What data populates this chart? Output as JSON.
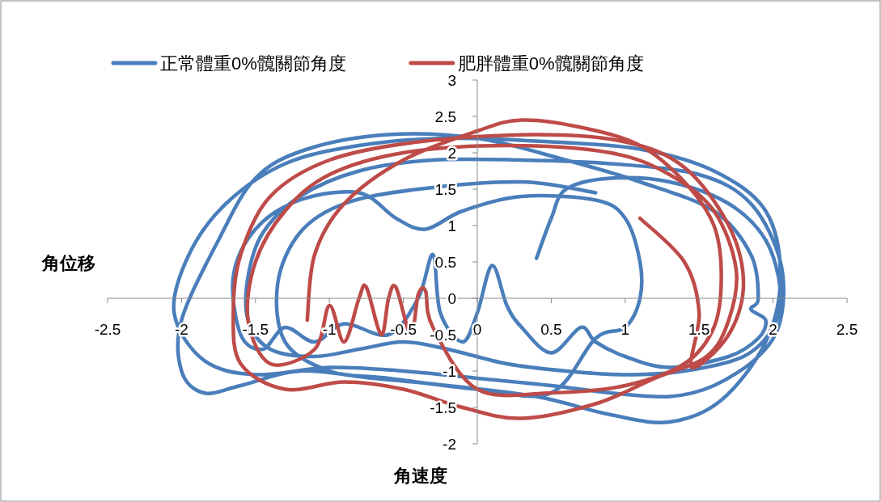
{
  "chart_data": {
    "type": "line",
    "xlabel": "角速度",
    "ylabel": "角位移",
    "xlim": [
      -2.5,
      2.5
    ],
    "ylim": [
      -2,
      3
    ],
    "xticks": [
      -2.5,
      -2,
      -1.5,
      -1,
      -0.5,
      0,
      0.5,
      1,
      1.5,
      2,
      2.5
    ],
    "yticks": [
      -2,
      -1.5,
      -1,
      -0.5,
      0,
      0.5,
      1,
      1.5,
      2,
      2.5,
      3
    ],
    "grid": false,
    "legend": "top",
    "marker": "none",
    "series": [
      {
        "name": "正常體重0%髖關節角度",
        "color": "#4a7ebb",
        "x": [
          0.4,
          0.5,
          0.6,
          0.9,
          1.3,
          1.7,
          1.95,
          2.05,
          2.0,
          1.8,
          1.4,
          1.0,
          0.6,
          0.2,
          -0.2,
          -0.5,
          -0.8,
          -1.1,
          -1.4,
          -1.55,
          -1.55,
          -1.45,
          -1.2,
          -0.8,
          -0.3,
          0.3,
          0.9,
          1.5,
          1.85,
          2.05,
          2.05,
          1.9,
          1.6,
          1.3,
          0.9,
          0.5,
          0.0,
          -0.5,
          -1.0,
          -1.5,
          -1.85,
          -2.05,
          -1.95,
          -1.7,
          -1.3,
          -0.8,
          -0.2,
          0.5,
          1.1,
          1.6,
          1.95,
          2.05,
          1.95,
          1.65,
          1.3,
          0.9,
          0.4,
          -0.2,
          -0.7,
          -1.2,
          -1.6,
          -1.85,
          -2.0,
          -2.0,
          -1.75,
          -1.5,
          -1.15,
          -0.6,
          0.0,
          0.6,
          1.1,
          1.6,
          1.85,
          1.9,
          1.85,
          1.95,
          1.9,
          1.7,
          1.3,
          1.0,
          0.8,
          0.7,
          0.5,
          0.3,
          0.2,
          0.1,
          0.0,
          -0.1,
          -0.25,
          -0.3,
          -0.4,
          -0.6,
          -0.9,
          -1.1,
          -1.3,
          -1.45,
          -1.6,
          -1.65,
          -1.5,
          -1.2,
          -0.8,
          -0.55,
          -0.35,
          -0.1,
          0.3,
          0.8,
          1.0,
          1.1,
          1.1,
          1.0,
          0.8,
          0.5,
          0.0,
          -0.6,
          -1.0,
          -1.3,
          -1.35,
          -1.2,
          -0.9,
          -0.4,
          0.3,
          0.8
        ],
        "values": [
          0.55,
          1.1,
          1.5,
          1.65,
          1.6,
          1.3,
          0.8,
          0.1,
          -0.4,
          -0.8,
          -1.0,
          -1.05,
          -1.0,
          -0.9,
          -0.7,
          -0.6,
          -0.7,
          -0.8,
          -0.7,
          -0.3,
          0.3,
          0.9,
          1.4,
          1.75,
          1.9,
          1.9,
          1.85,
          1.7,
          1.3,
          0.5,
          -0.3,
          -0.8,
          -1.2,
          -1.35,
          -1.3,
          -1.2,
          -1.1,
          -1.0,
          -0.95,
          -1.05,
          -0.85,
          -0.2,
          0.6,
          1.3,
          1.85,
          2.1,
          2.2,
          2.15,
          2.05,
          1.75,
          1.2,
          0.3,
          -0.6,
          -1.4,
          -1.7,
          -1.6,
          -1.35,
          -1.2,
          -1.1,
          -1.0,
          -1.2,
          -1.3,
          -1.0,
          -0.3,
          0.8,
          1.65,
          2.05,
          2.25,
          2.2,
          1.9,
          1.6,
          1.2,
          0.6,
          0.0,
          -0.15,
          -0.3,
          -0.55,
          -0.8,
          -0.95,
          -0.8,
          -0.6,
          -0.4,
          -0.75,
          -0.4,
          -0.1,
          0.45,
          -0.2,
          -0.6,
          -0.2,
          0.6,
          0.0,
          -0.5,
          -0.35,
          -0.6,
          -0.4,
          -0.7,
          -0.5,
          0.3,
          0.95,
          1.35,
          1.45,
          1.1,
          0.95,
          1.2,
          1.4,
          1.35,
          1.1,
          0.5,
          0.0,
          -0.4,
          -0.55,
          -1.3,
          -1.25,
          -1.1,
          -1.0,
          -0.6,
          0.2,
          0.9,
          1.3,
          1.5,
          1.6,
          1.45
        ]
      },
      {
        "name": "肥胖體重0%髖關節角度",
        "color": "#be4b48",
        "x": [
          -1.15,
          -1.1,
          -0.9,
          -0.5,
          0.0,
          0.3,
          0.7,
          1.1,
          1.4,
          1.6,
          1.65,
          1.6,
          1.4,
          1.0,
          0.5,
          0.0,
          -0.3,
          -0.35,
          -0.4,
          -0.45,
          -0.55,
          -0.6,
          -0.65,
          -0.75,
          -0.8,
          -0.9,
          -1.0,
          -1.1,
          -1.4,
          -1.55,
          -1.5,
          -1.3,
          -1.0,
          -0.5,
          0.2,
          0.9,
          1.3,
          1.6,
          1.75,
          1.7,
          1.55,
          1.2,
          0.8,
          0.3,
          -0.1,
          -0.5,
          -0.9,
          -1.3,
          -1.6,
          -1.65,
          -1.6,
          -1.4,
          -1.0,
          -0.4,
          0.4,
          1.0,
          1.4,
          1.7,
          1.8,
          1.7,
          1.45,
          1.5,
          1.4,
          1.1
        ],
        "values": [
          -0.3,
          0.6,
          1.3,
          1.9,
          2.3,
          2.45,
          2.35,
          2.1,
          1.6,
          1.0,
          0.3,
          -0.4,
          -0.9,
          -1.2,
          -1.3,
          -1.25,
          -0.4,
          0.1,
          0.05,
          -0.5,
          0.15,
          0.0,
          -0.5,
          0.15,
          0.0,
          -0.6,
          -0.1,
          -0.7,
          -0.9,
          -0.3,
          0.5,
          1.2,
          1.7,
          2.0,
          2.1,
          2.0,
          1.7,
          1.2,
          0.4,
          -0.3,
          -0.8,
          -1.1,
          -1.45,
          -1.65,
          -1.5,
          -1.25,
          -1.15,
          -1.25,
          -0.9,
          -0.2,
          0.6,
          1.4,
          1.9,
          2.15,
          2.25,
          2.15,
          1.8,
          1.0,
          0.2,
          -0.5,
          -0.95,
          -0.2,
          0.5,
          1.1
        ]
      }
    ]
  }
}
